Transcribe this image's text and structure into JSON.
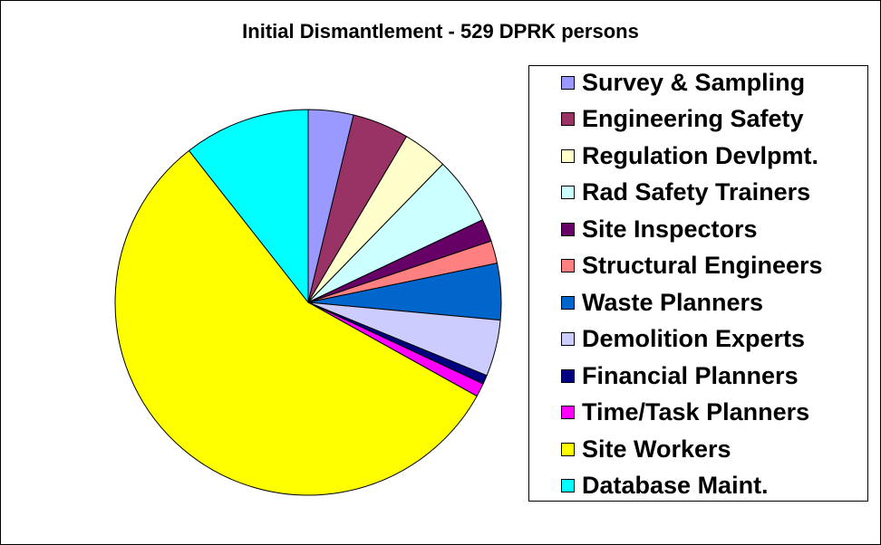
{
  "chart_data": {
    "type": "pie",
    "title": "Initial Dismantlement - 529 DPRK persons",
    "slices": [
      {
        "label": "Survey & Sampling",
        "value": 20,
        "color": "#9999FF"
      },
      {
        "label": "Engineering Safety",
        "value": 25,
        "color": "#993366"
      },
      {
        "label": "Regulation Devlpmt.",
        "value": 20,
        "color": "#FFFFCC"
      },
      {
        "label": "Rad Safety Trainers",
        "value": 30,
        "color": "#CCFFFF"
      },
      {
        "label": "Site Inspectors",
        "value": 10,
        "color": "#660066"
      },
      {
        "label": "Structural Engineers",
        "value": 10,
        "color": "#FF8080"
      },
      {
        "label": "Waste Planners",
        "value": 25,
        "color": "#0066CC"
      },
      {
        "label": "Demolition Experts",
        "value": 25,
        "color": "#CCCCFF"
      },
      {
        "label": "Financial Planners",
        "value": 4,
        "color": "#000080"
      },
      {
        "label": "Time/Task Planners",
        "value": 6,
        "color": "#FF00FF"
      },
      {
        "label": "Site Workers",
        "value": 298,
        "color": "#FFFF00"
      },
      {
        "label": "Database Maint.",
        "value": 56,
        "color": "#00FFFF"
      }
    ],
    "legend_position": "right"
  }
}
